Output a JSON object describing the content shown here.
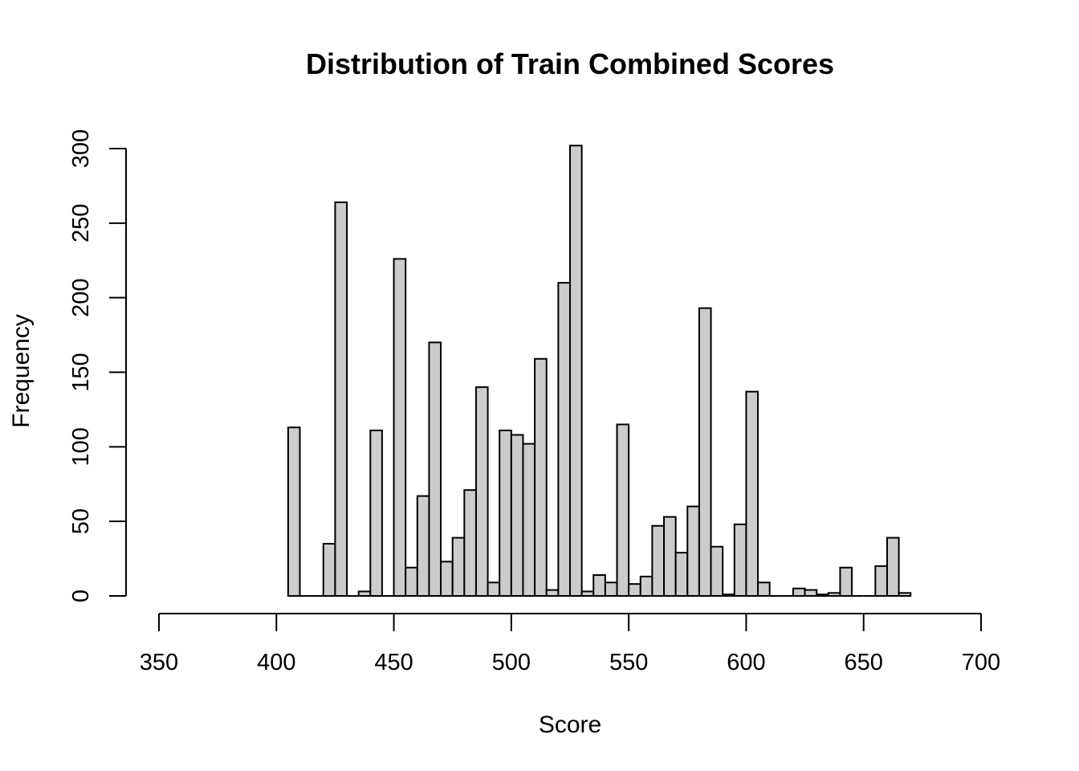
{
  "chart_data": {
    "type": "bar",
    "title": "Distribution of Train Combined Scores",
    "xlabel": "Score",
    "ylabel": "Frequency",
    "xlim": [
      350,
      700
    ],
    "ylim": [
      0,
      300
    ],
    "x_ticks": [
      350,
      400,
      450,
      500,
      550,
      600,
      650,
      700
    ],
    "y_ticks": [
      0,
      50,
      100,
      150,
      200,
      250,
      300
    ],
    "bin_width": 5,
    "bin_start": 405,
    "bar_color": "#cccccc",
    "edge_color": "#000000",
    "values": [
      113,
      0,
      0,
      35,
      264,
      0,
      3,
      111,
      0,
      226,
      19,
      67,
      170,
      23,
      39,
      71,
      140,
      9,
      111,
      108,
      102,
      159,
      4,
      210,
      302,
      3,
      14,
      9,
      115,
      8,
      13,
      47,
      53,
      29,
      60,
      193,
      33,
      1,
      48,
      137,
      9,
      0,
      0,
      5,
      4,
      1,
      2,
      19,
      0,
      0,
      20,
      39,
      2
    ]
  }
}
